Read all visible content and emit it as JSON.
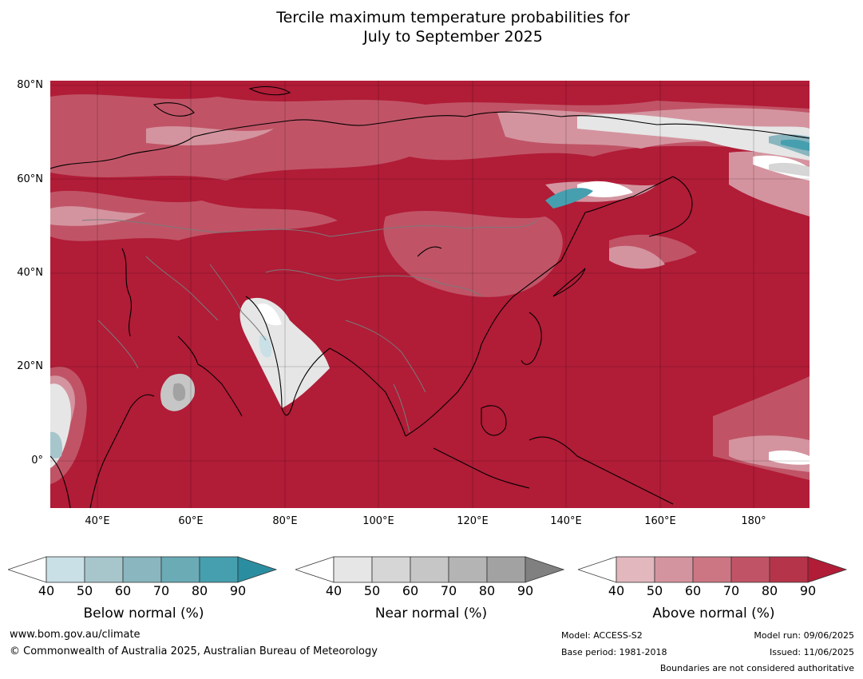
{
  "title": {
    "line1": "Tercile maximum temperature probabilities for",
    "line2": "July to September 2025"
  },
  "map": {
    "lat_labels": [
      "80°N",
      "60°N",
      "40°N",
      "20°N",
      "0°"
    ],
    "lon_labels": [
      "40°E",
      "60°E",
      "80°E",
      "100°E",
      "120°E",
      "140°E",
      "160°E",
      "180°"
    ],
    "extent": {
      "lon": [
        30,
        192
      ],
      "lat": [
        -10,
        81
      ]
    },
    "colors": {
      "dominant": "#b11c37",
      "coast": "#000000",
      "border": "#7a7a7a"
    }
  },
  "legends": [
    {
      "title": "Below normal (%)",
      "ticks": [
        "40",
        "50",
        "60",
        "70",
        "80",
        "90"
      ],
      "colors": [
        "#ffffff",
        "#c8e0e6",
        "#a6c6cc",
        "#89b6bf",
        "#6aabb6",
        "#469fae",
        "#2b8da0"
      ]
    },
    {
      "title": "Near normal (%)",
      "ticks": [
        "40",
        "50",
        "60",
        "70",
        "80",
        "90"
      ],
      "colors": [
        "#ffffff",
        "#e6e6e6",
        "#d6d6d6",
        "#c6c6c6",
        "#b4b4b4",
        "#a2a2a2",
        "#808080"
      ]
    },
    {
      "title": "Above normal (%)",
      "ticks": [
        "40",
        "50",
        "60",
        "70",
        "80",
        "90"
      ],
      "colors": [
        "#ffffff",
        "#e2b7be",
        "#d4949f",
        "#cc7683",
        "#c05466",
        "#b5344a",
        "#b11c37"
      ]
    }
  ],
  "footer": {
    "website": "www.bom.gov.au/climate",
    "copyright": "© Commonwealth of Australia 2025, Australian Bureau of Meteorology",
    "model": "Model: ACCESS-S2",
    "base_period": "Base period: 1981-2018",
    "model_run": "Model run: 09/06/2025",
    "issued": "Issued: 11/06/2025",
    "boundaries": "Boundaries are not considered authoritative"
  }
}
